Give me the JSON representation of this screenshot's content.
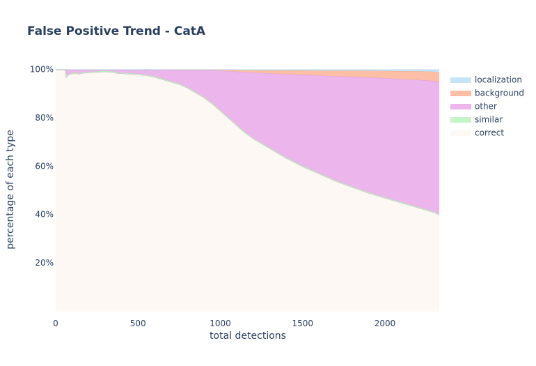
{
  "chart_data": {
    "type": "area",
    "title": "False Positive Trend - CatA",
    "xlabel": "total detections",
    "ylabel": "percentage of each type",
    "xlim": [
      0,
      2330
    ],
    "ylim": [
      0,
      100
    ],
    "xticks": [
      0,
      500,
      1000,
      1500,
      2000
    ],
    "yticks": [
      20,
      40,
      60,
      80,
      100
    ],
    "xtick_labels": [
      "0",
      "500",
      "1000",
      "1500",
      "2000"
    ],
    "ytick_labels": [
      "20%",
      "40%",
      "60%",
      "80%",
      "100%"
    ],
    "legend_position": "top-right",
    "legend": [
      "localization",
      "background",
      "other",
      "similar",
      "correct"
    ],
    "x": [
      0,
      60,
      65,
      70,
      80,
      100,
      120,
      140,
      160,
      200,
      250,
      300,
      350,
      380,
      400,
      450,
      500,
      550,
      600,
      650,
      700,
      750,
      800,
      850,
      900,
      950,
      1000,
      1050,
      1100,
      1150,
      1200,
      1300,
      1400,
      1500,
      1600,
      1700,
      1800,
      1900,
      2000,
      2100,
      2200,
      2300,
      2330
    ],
    "series": [
      {
        "name": "correct",
        "color": "#fdf8f3",
        "values": [
          100,
          100,
          97,
          97.5,
          98,
          98.3,
          98.5,
          98.2,
          98.6,
          98.8,
          99.0,
          99.2,
          99.0,
          98.5,
          98.5,
          98.2,
          98.0,
          97.7,
          97.0,
          96.0,
          95.0,
          94.0,
          92.5,
          90.5,
          88.5,
          86.0,
          83.0,
          80.0,
          77.0,
          74.0,
          71.5,
          67.5,
          63.5,
          60.0,
          57.0,
          54.0,
          51.5,
          49.0,
          47.0,
          45.0,
          43.0,
          41.0,
          40.0
        ]
      },
      {
        "name": "similar",
        "color": "#c7f4c7",
        "values": [
          0,
          0,
          0.3,
          0.3,
          0.3,
          0.3,
          0.3,
          0.3,
          0.3,
          0.3,
          0.3,
          0.3,
          0.3,
          0.3,
          0.3,
          0.3,
          0.3,
          0.3,
          0.3,
          0.3,
          0.3,
          0.3,
          0.3,
          0.3,
          0.3,
          0.3,
          0.3,
          0.3,
          0.3,
          0.3,
          0.3,
          0.3,
          0.3,
          0.3,
          0.3,
          0.3,
          0.3,
          0.3,
          0.3,
          0.3,
          0.3,
          0.3,
          0.3
        ]
      },
      {
        "name": "other",
        "color": "#ecb5ec",
        "values": [
          0,
          0,
          2.7,
          2.2,
          1.7,
          1.4,
          1.2,
          1.5,
          1.1,
          0.9,
          0.7,
          0.5,
          0.7,
          1.2,
          1.2,
          1.5,
          1.7,
          2.0,
          2.6,
          3.6,
          4.5,
          5.5,
          7.0,
          9.0,
          11.0,
          13.4,
          16.3,
          19.1,
          21.9,
          24.7,
          27.0,
          30.7,
          34.4,
          37.6,
          40.3,
          43.0,
          45.3,
          47.5,
          49.2,
          50.8,
          52.5,
          54.0,
          54.7
        ]
      },
      {
        "name": "background",
        "color": "#fcbfa6",
        "values": [
          0,
          0,
          0,
          0,
          0,
          0,
          0,
          0,
          0,
          0,
          0,
          0,
          0,
          0,
          0,
          0,
          0,
          0.05,
          0.1,
          0.1,
          0.2,
          0.2,
          0.2,
          0.2,
          0.2,
          0.3,
          0.4,
          0.6,
          0.7,
          0.8,
          1.0,
          1.3,
          1.5,
          1.8,
          2.0,
          2.3,
          2.5,
          2.8,
          3.0,
          3.3,
          3.6,
          3.9,
          4.0
        ]
      },
      {
        "name": "localization",
        "color": "#c5e4f7",
        "values": [
          0,
          0,
          0,
          0,
          0,
          0,
          0,
          0,
          0,
          0,
          0,
          0,
          0,
          0,
          0,
          0,
          0,
          0,
          0,
          0,
          0,
          0,
          0,
          0,
          0,
          0,
          0,
          0,
          0.1,
          0.2,
          0.2,
          0.2,
          0.3,
          0.3,
          0.4,
          0.4,
          0.4,
          0.4,
          0.5,
          0.6,
          0.6,
          0.8,
          1.0
        ]
      }
    ]
  }
}
